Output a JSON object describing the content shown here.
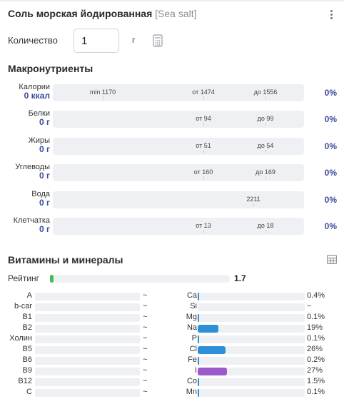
{
  "header": {
    "title": "Соль морская йодированная",
    "title_en": "[Sea salt]",
    "menu_icon": "kebab-menu-icon"
  },
  "quantity": {
    "label": "Количество",
    "value": "1",
    "unit": "г",
    "calculator_icon": "calculator-icon"
  },
  "macros": {
    "heading": "Макронутриенты",
    "rows": [
      {
        "name": "Калории",
        "value": "0 ккал",
        "percent": "0%",
        "markers": {
          "min": "min 1170",
          "from": "от 1474",
          "to": "до 1556"
        }
      },
      {
        "name": "Белки",
        "value": "0 г",
        "percent": "0%",
        "markers": {
          "from": "от 94",
          "to": "до 99"
        }
      },
      {
        "name": "Жиры",
        "value": "0 г",
        "percent": "0%",
        "markers": {
          "from": "от 51",
          "to": "до 54"
        }
      },
      {
        "name": "Углеводы",
        "value": "0 г",
        "percent": "0%",
        "markers": {
          "from": "от 160",
          "to": "до 169"
        }
      },
      {
        "name": "Вода",
        "value": "0 г",
        "percent": "0%",
        "markers": {
          "norm": "2211"
        }
      },
      {
        "name": "Клетчатка",
        "value": "0 г",
        "percent": "0%",
        "markers": {
          "from": "от 13",
          "to": "до 18"
        }
      }
    ]
  },
  "micros": {
    "heading": "Витамины и минералы",
    "table_icon": "table-icon",
    "rating": {
      "label": "Рейтинг",
      "value": "1.7",
      "fill_percent": 1.7,
      "color": "#3fbf4f"
    },
    "vitamins": [
      {
        "name": "A",
        "value": "~"
      },
      {
        "name": "b-car",
        "value": "~"
      },
      {
        "name": "B1",
        "value": "~"
      },
      {
        "name": "B2",
        "value": "~"
      },
      {
        "name": "Холин",
        "value": "~"
      },
      {
        "name": "B5",
        "value": "~"
      },
      {
        "name": "B6",
        "value": "~"
      },
      {
        "name": "B9",
        "value": "~"
      },
      {
        "name": "B12",
        "value": "~"
      },
      {
        "name": "C",
        "value": "~"
      }
    ],
    "minerals": [
      {
        "name": "Ca",
        "value": "0.4%",
        "percent": 0.4,
        "color": "#2d8fd6"
      },
      {
        "name": "Si",
        "value": "~",
        "percent": 0,
        "color": "#2d8fd6"
      },
      {
        "name": "Mg",
        "value": "0.1%",
        "percent": 0.1,
        "color": "#2d8fd6"
      },
      {
        "name": "Na",
        "value": "19%",
        "percent": 19,
        "color": "#2d8fd6"
      },
      {
        "name": "P",
        "value": "0.1%",
        "percent": 0.1,
        "color": "#2d8fd6"
      },
      {
        "name": "Cl",
        "value": "26%",
        "percent": 26,
        "color": "#2d8fd6"
      },
      {
        "name": "Fe",
        "value": "0.2%",
        "percent": 0.2,
        "color": "#2d8fd6"
      },
      {
        "name": "I",
        "value": "27%",
        "percent": 27,
        "color": "#9b59c9"
      },
      {
        "name": "Co",
        "value": "1.5%",
        "percent": 1.5,
        "color": "#2d8fd6"
      },
      {
        "name": "Mn",
        "value": "0.1%",
        "percent": 0.1,
        "color": "#2d8fd6"
      }
    ]
  },
  "colors": {
    "accent": "#3b4a9c",
    "track": "#eef0f3"
  }
}
